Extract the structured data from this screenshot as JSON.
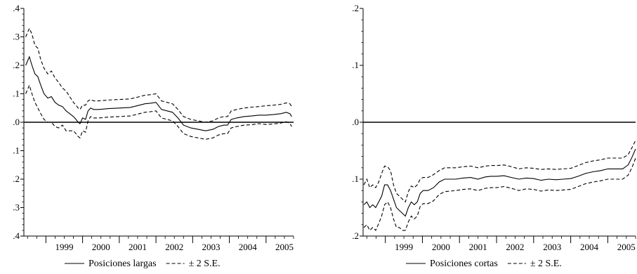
{
  "chart_data": [
    {
      "type": "line",
      "x_ticks": [
        "1999",
        "2000",
        "2001",
        "2002",
        "2003",
        "2004",
        "2005"
      ],
      "y_tick_labels": [
        ".4",
        ".3",
        ".2",
        ".1",
        ".0",
        ".1",
        ".2",
        ".3",
        ".4"
      ],
      "ylim": [
        -0.4,
        0.4
      ],
      "xlim": [
        1998.4,
        2005.75
      ],
      "zero_line": 0.0,
      "legend": {
        "series_label": "Posiciones largas",
        "band_label": "± 2 S.E."
      },
      "series": [
        {
          "name": "Posiciones largas",
          "style": "solid",
          "x": [
            1998.45,
            1998.55,
            1998.62,
            1998.7,
            1998.78,
            1998.86,
            1998.95,
            1999.05,
            1999.15,
            1999.25,
            1999.35,
            1999.45,
            1999.55,
            1999.65,
            1999.75,
            1999.82,
            1999.88,
            1999.93,
            2000.0,
            2000.08,
            2000.15,
            2000.22,
            2000.3,
            2000.45,
            2000.7,
            2001.0,
            2001.3,
            2001.55,
            2001.7,
            2001.85,
            2002.0,
            2002.15,
            2002.3,
            2002.45,
            2002.6,
            2002.75,
            2002.95,
            2003.15,
            2003.35,
            2003.55,
            2003.7,
            2003.85,
            2003.95,
            2004.05,
            2004.2,
            2004.4,
            2004.6,
            2004.8,
            2005.0,
            2005.2,
            2005.4,
            2005.55,
            2005.65,
            2005.7
          ],
          "y": [
            0.2,
            0.23,
            0.2,
            0.17,
            0.16,
            0.13,
            0.1,
            0.085,
            0.09,
            0.07,
            0.06,
            0.055,
            0.04,
            0.03,
            0.02,
            0.01,
            0.0,
            -0.005,
            0.015,
            0.01,
            0.04,
            0.05,
            0.045,
            0.045,
            0.048,
            0.05,
            0.052,
            0.06,
            0.065,
            0.067,
            0.07,
            0.045,
            0.04,
            0.035,
            0.015,
            -0.01,
            -0.02,
            -0.025,
            -0.03,
            -0.025,
            -0.015,
            -0.01,
            -0.01,
            0.01,
            0.015,
            0.02,
            0.022,
            0.025,
            0.025,
            0.027,
            0.03,
            0.035,
            0.03,
            0.02
          ]
        },
        {
          "name": "upper",
          "style": "dashed",
          "x": [
            1998.45,
            1998.55,
            1998.62,
            1998.7,
            1998.78,
            1998.86,
            1998.95,
            1999.05,
            1999.15,
            1999.25,
            1999.35,
            1999.45,
            1999.55,
            1999.65,
            1999.75,
            1999.82,
            1999.88,
            1999.93,
            2000.0,
            2000.08,
            2000.15,
            2000.22,
            2000.3,
            2000.45,
            2000.7,
            2001.0,
            2001.3,
            2001.55,
            2001.7,
            2001.85,
            2002.0,
            2002.15,
            2002.3,
            2002.45,
            2002.6,
            2002.75,
            2002.95,
            2003.15,
            2003.35,
            2003.55,
            2003.7,
            2003.85,
            2003.95,
            2004.05,
            2004.2,
            2004.4,
            2004.6,
            2004.8,
            2005.0,
            2005.2,
            2005.4,
            2005.55,
            2005.65,
            2005.7
          ],
          "y": [
            0.3,
            0.33,
            0.31,
            0.27,
            0.26,
            0.22,
            0.19,
            0.17,
            0.18,
            0.155,
            0.14,
            0.12,
            0.11,
            0.09,
            0.07,
            0.06,
            0.05,
            0.045,
            0.06,
            0.06,
            0.075,
            0.08,
            0.075,
            0.075,
            0.078,
            0.08,
            0.082,
            0.09,
            0.095,
            0.097,
            0.1,
            0.075,
            0.07,
            0.065,
            0.045,
            0.02,
            0.01,
            0.005,
            0.0,
            0.005,
            0.015,
            0.02,
            0.02,
            0.04,
            0.045,
            0.05,
            0.053,
            0.055,
            0.058,
            0.06,
            0.063,
            0.068,
            0.065,
            0.055
          ]
        },
        {
          "name": "lower",
          "style": "dashed",
          "x": [
            1998.45,
            1998.55,
            1998.62,
            1998.7,
            1998.78,
            1998.86,
            1998.95,
            1999.05,
            1999.15,
            1999.25,
            1999.35,
            1999.45,
            1999.55,
            1999.65,
            1999.75,
            1999.82,
            1999.88,
            1999.93,
            2000.0,
            2000.08,
            2000.15,
            2000.22,
            2000.3,
            2000.45,
            2000.7,
            2001.0,
            2001.3,
            2001.55,
            2001.7,
            2001.85,
            2002.0,
            2002.15,
            2002.3,
            2002.45,
            2002.6,
            2002.75,
            2002.95,
            2003.15,
            2003.35,
            2003.55,
            2003.7,
            2003.85,
            2003.95,
            2004.05,
            2004.2,
            2004.4,
            2004.6,
            2004.8,
            2005.0,
            2005.2,
            2005.4,
            2005.55,
            2005.65,
            2005.7
          ],
          "y": [
            0.1,
            0.13,
            0.1,
            0.07,
            0.05,
            0.03,
            0.01,
            0.0,
            0.0,
            -0.015,
            -0.02,
            -0.01,
            -0.03,
            -0.03,
            -0.03,
            -0.04,
            -0.05,
            -0.055,
            -0.03,
            -0.035,
            0.005,
            0.02,
            0.015,
            0.015,
            0.018,
            0.02,
            0.022,
            0.03,
            0.035,
            0.037,
            0.04,
            0.015,
            0.01,
            0.005,
            -0.015,
            -0.04,
            -0.05,
            -0.055,
            -0.06,
            -0.055,
            -0.045,
            -0.04,
            -0.04,
            -0.02,
            -0.015,
            -0.01,
            -0.009,
            -0.005,
            -0.008,
            -0.006,
            -0.003,
            0.002,
            -0.005,
            -0.015
          ]
        }
      ]
    },
    {
      "type": "line",
      "x_ticks": [
        "1999",
        "2000",
        "2001",
        "2002",
        "2003",
        "2004",
        "2005"
      ],
      "y_tick_labels": [
        ".2",
        ".1",
        ".0",
        ".1",
        ".2"
      ],
      "ylim": [
        -0.2,
        0.2
      ],
      "xlim": [
        1998.4,
        2005.75
      ],
      "zero_line": 0.0,
      "legend": {
        "series_label": "Posiciones cortas",
        "band_label": "± 2 S.E."
      },
      "series": [
        {
          "name": "Posiciones cortas",
          "style": "solid",
          "x": [
            1998.42,
            1998.5,
            1998.58,
            1998.66,
            1998.74,
            1998.82,
            1998.9,
            1998.98,
            1999.06,
            1999.14,
            1999.22,
            1999.3,
            1999.38,
            1999.46,
            1999.54,
            1999.62,
            1999.7,
            1999.78,
            1999.86,
            1999.94,
            2000.02,
            2000.15,
            2000.3,
            2000.45,
            2000.6,
            2000.75,
            2000.9,
            2001.1,
            2001.3,
            2001.5,
            2001.7,
            2001.85,
            2002.0,
            2002.2,
            2002.4,
            2002.6,
            2002.8,
            2003.0,
            2003.2,
            2003.4,
            2003.6,
            2003.8,
            2004.0,
            2004.2,
            2004.4,
            2004.6,
            2004.8,
            2005.0,
            2005.2,
            2005.4,
            2005.55,
            2005.65,
            2005.75
          ],
          "y": [
            -0.145,
            -0.14,
            -0.15,
            -0.145,
            -0.15,
            -0.14,
            -0.13,
            -0.11,
            -0.11,
            -0.12,
            -0.135,
            -0.15,
            -0.155,
            -0.16,
            -0.165,
            -0.15,
            -0.14,
            -0.145,
            -0.14,
            -0.125,
            -0.12,
            -0.12,
            -0.115,
            -0.105,
            -0.1,
            -0.1,
            -0.1,
            -0.098,
            -0.097,
            -0.1,
            -0.096,
            -0.095,
            -0.095,
            -0.094,
            -0.097,
            -0.1,
            -0.098,
            -0.099,
            -0.102,
            -0.1,
            -0.101,
            -0.1,
            -0.099,
            -0.095,
            -0.09,
            -0.087,
            -0.085,
            -0.082,
            -0.082,
            -0.082,
            -0.075,
            -0.062,
            -0.047
          ]
        },
        {
          "name": "upper",
          "style": "dashed",
          "x": [
            1998.42,
            1998.5,
            1998.58,
            1998.66,
            1998.74,
            1998.82,
            1998.9,
            1998.98,
            1999.06,
            1999.14,
            1999.22,
            1999.3,
            1999.38,
            1999.46,
            1999.54,
            1999.62,
            1999.7,
            1999.78,
            1999.86,
            1999.94,
            2000.02,
            2000.15,
            2000.3,
            2000.45,
            2000.6,
            2000.75,
            2000.9,
            2001.1,
            2001.3,
            2001.5,
            2001.7,
            2001.85,
            2002.0,
            2002.2,
            2002.4,
            2002.6,
            2002.8,
            2003.0,
            2003.2,
            2003.4,
            2003.6,
            2003.8,
            2004.0,
            2004.2,
            2004.4,
            2004.6,
            2004.8,
            2005.0,
            2005.2,
            2005.4,
            2005.55,
            2005.65,
            2005.75
          ],
          "y": [
            -0.11,
            -0.1,
            -0.115,
            -0.11,
            -0.115,
            -0.105,
            -0.09,
            -0.077,
            -0.078,
            -0.085,
            -0.11,
            -0.125,
            -0.13,
            -0.135,
            -0.14,
            -0.122,
            -0.112,
            -0.115,
            -0.11,
            -0.1,
            -0.097,
            -0.097,
            -0.092,
            -0.085,
            -0.08,
            -0.08,
            -0.08,
            -0.078,
            -0.077,
            -0.08,
            -0.077,
            -0.076,
            -0.076,
            -0.075,
            -0.078,
            -0.082,
            -0.08,
            -0.081,
            -0.083,
            -0.082,
            -0.083,
            -0.082,
            -0.081,
            -0.076,
            -0.071,
            -0.068,
            -0.066,
            -0.063,
            -0.063,
            -0.063,
            -0.057,
            -0.045,
            -0.032
          ]
        },
        {
          "name": "lower",
          "style": "dashed",
          "x": [
            1998.42,
            1998.5,
            1998.58,
            1998.66,
            1998.74,
            1998.82,
            1998.9,
            1998.98,
            1999.06,
            1999.14,
            1999.22,
            1999.3,
            1999.38,
            1999.46,
            1999.54,
            1999.62,
            1999.7,
            1999.78,
            1999.86,
            1999.94,
            2000.02,
            2000.15,
            2000.3,
            2000.45,
            2000.6,
            2000.75,
            2000.9,
            2001.1,
            2001.3,
            2001.5,
            2001.7,
            2001.85,
            2002.0,
            2002.2,
            2002.4,
            2002.6,
            2002.8,
            2003.0,
            2003.2,
            2003.4,
            2003.6,
            2003.8,
            2004.0,
            2004.2,
            2004.4,
            2004.6,
            2004.8,
            2005.0,
            2005.2,
            2005.4,
            2005.55,
            2005.65,
            2005.75
          ],
          "y": [
            -0.185,
            -0.18,
            -0.19,
            -0.185,
            -0.19,
            -0.178,
            -0.165,
            -0.145,
            -0.14,
            -0.15,
            -0.17,
            -0.185,
            -0.185,
            -0.19,
            -0.19,
            -0.175,
            -0.165,
            -0.17,
            -0.165,
            -0.148,
            -0.143,
            -0.143,
            -0.138,
            -0.127,
            -0.122,
            -0.121,
            -0.12,
            -0.118,
            -0.117,
            -0.12,
            -0.116,
            -0.115,
            -0.115,
            -0.113,
            -0.116,
            -0.12,
            -0.117,
            -0.118,
            -0.121,
            -0.119,
            -0.12,
            -0.119,
            -0.118,
            -0.113,
            -0.108,
            -0.105,
            -0.103,
            -0.1,
            -0.1,
            -0.1,
            -0.093,
            -0.08,
            -0.063
          ]
        }
      ]
    }
  ]
}
